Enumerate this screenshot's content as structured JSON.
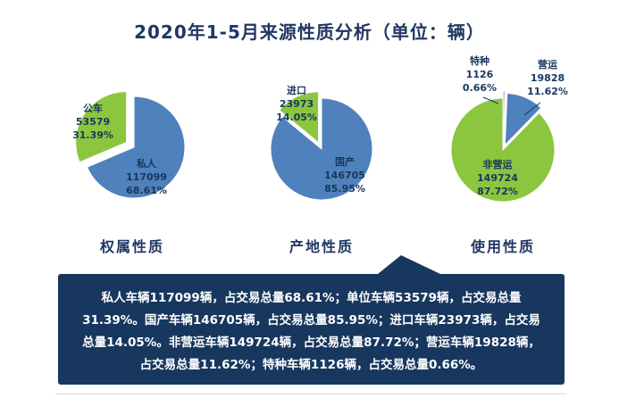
{
  "header": {
    "title": "2020年1-5月来源性质分析（单位：辆）"
  },
  "chart_data": [
    {
      "type": "pie",
      "title": "权属性质",
      "labels": [
        "私人",
        "公车"
      ],
      "values": [
        117099,
        53579
      ],
      "pcts": [
        "68.61%",
        "31.39%"
      ],
      "colors": [
        "#4f81bd",
        "#8cc63e"
      ],
      "legend_position": "none"
    },
    {
      "type": "pie",
      "title": "产地性质",
      "labels": [
        "国产",
        "进口"
      ],
      "values": [
        146705,
        23973
      ],
      "pcts": [
        "85.95%",
        "14.05%"
      ],
      "colors": [
        "#4f81bd",
        "#8cc63e"
      ],
      "legend_position": "none"
    },
    {
      "type": "pie",
      "title": "使用性质",
      "labels": [
        "特种",
        "营运",
        "非营运"
      ],
      "values": [
        1126,
        19828,
        149724
      ],
      "pcts": [
        "0.66%",
        "11.62%",
        "87.72%"
      ],
      "colors": [
        "#b3b3b3",
        "#4f81bd",
        "#8cc63e"
      ],
      "legend_position": "none"
    }
  ],
  "summary": {
    "text": "私人车辆117099辆，占交易总量68.61%；单位车辆53579辆，占交易总量31.39%。国产车辆146705辆，占交易总量85.95%；进口车辆23973辆，占交易总量14.05%。非营运车辆149724辆，占交易总量87.72%；营运车辆19828辆，占交易总量11.62%；特种车辆1126辆，占交易总量0.66%。"
  },
  "colors": {
    "accent_navy": "#17375e",
    "pie_blue": "#4f81bd",
    "pie_green": "#8cc63e",
    "pie_gray": "#b3b3b3"
  }
}
